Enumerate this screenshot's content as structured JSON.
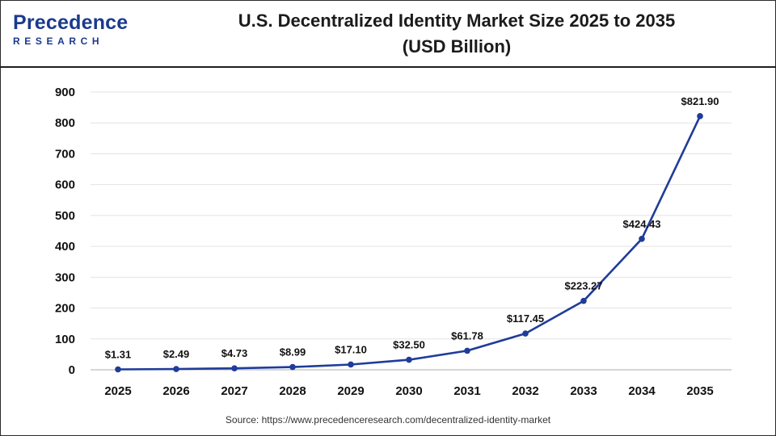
{
  "header": {
    "logo_text": "Precedence",
    "logo_subtext": "RESEARCH",
    "title_line1": "U.S. Decentralized Identity Market Size 2025 to 2035",
    "title_line2": "(USD Billion)"
  },
  "footer": {
    "source": "Source: https://www.precedenceresearch.com/decentralized-identity-market"
  },
  "colors": {
    "line": "#1f3c99",
    "point": "#1f3c99",
    "grid": "#e3e3e3",
    "axis": "#bdbdbd",
    "text": "#111111"
  },
  "chart_data": {
    "type": "line",
    "title": "U.S. Decentralized Identity Market Size 2025 to 2035 (USD Billion)",
    "xlabel": "",
    "ylabel": "",
    "ylim": [
      0,
      900
    ],
    "yticks": [
      0,
      100,
      200,
      300,
      400,
      500,
      600,
      700,
      800,
      900
    ],
    "grid": true,
    "legend": "none",
    "categories": [
      "2025",
      "2026",
      "2027",
      "2028",
      "2029",
      "2030",
      "2031",
      "2032",
      "2033",
      "2034",
      "2035"
    ],
    "series": [
      {
        "values": [
          1.31,
          2.49,
          4.73,
          8.99,
          17.1,
          32.5,
          61.78,
          117.45,
          223.27,
          424.43,
          821.9
        ],
        "labels": [
          "$1.31",
          "$2.49",
          "$4.73",
          "$8.99",
          "$17.10",
          "$32.50",
          "$61.78",
          "$117.45",
          "$223.27",
          "$424.43",
          "$821.90"
        ]
      }
    ]
  }
}
